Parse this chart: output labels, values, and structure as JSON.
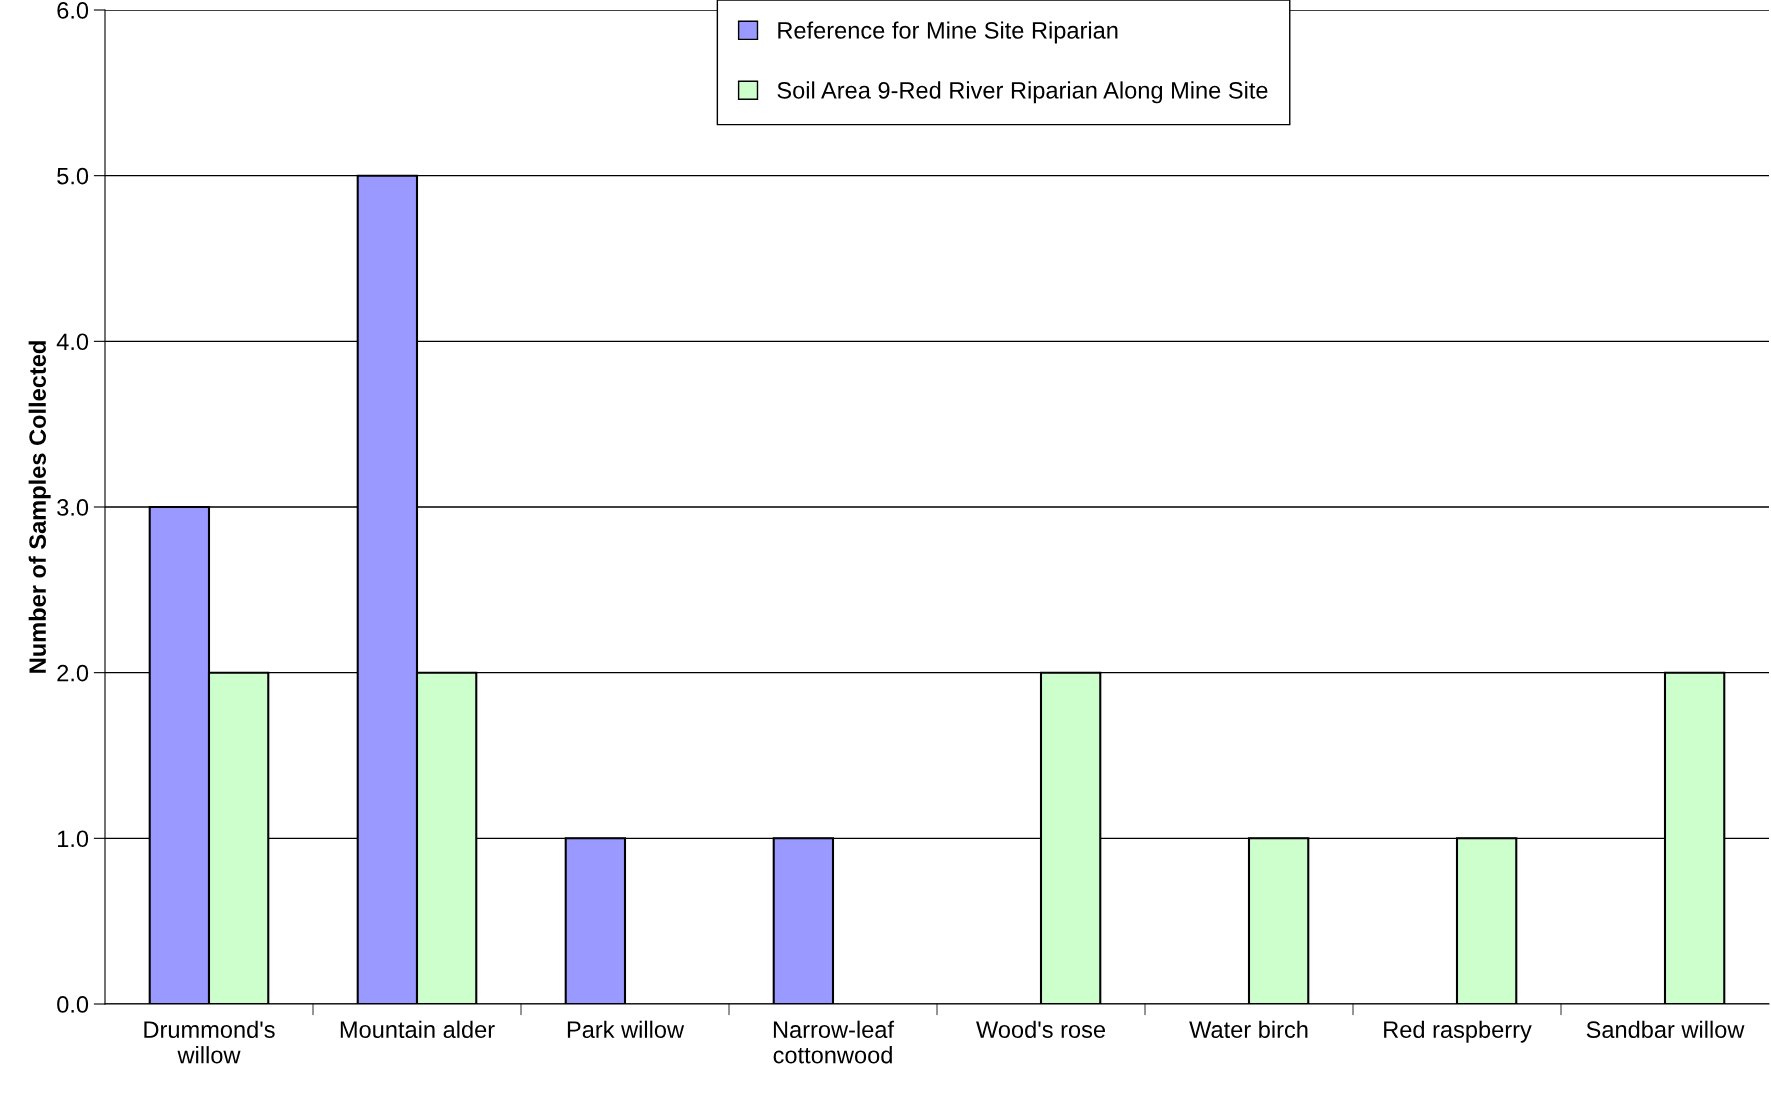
{
  "chart_data": {
    "type": "bar",
    "ylabel": "Number of Samples Collected",
    "categories": [
      "Drummond's\nwillow",
      "Mountain alder",
      "Park willow",
      "Narrow-leaf\ncottonwood",
      "Wood's rose",
      "Water birch",
      "Red raspberry",
      "Sandbar willow"
    ],
    "series": [
      {
        "name": "Reference for Mine Site Riparian",
        "color": "#9999ff",
        "values": [
          3,
          5,
          1,
          1,
          null,
          null,
          null,
          null
        ]
      },
      {
        "name": "Soil Area 9-Red River Riparian Along Mine Site",
        "color": "#ccffcc",
        "values": [
          2,
          2,
          null,
          null,
          2,
          1,
          1,
          2
        ]
      }
    ],
    "ylim": [
      0,
      6
    ],
    "yticks": [
      {
        "value": 0,
        "label": "0.0"
      },
      {
        "value": 1,
        "label": "1.0"
      },
      {
        "value": 2,
        "label": "2.0"
      },
      {
        "value": 3,
        "label": "3.0"
      },
      {
        "value": 4,
        "label": "4.0"
      },
      {
        "value": 5,
        "label": "5.0"
      },
      {
        "value": 6,
        "label": "6.0"
      }
    ],
    "grid": "y",
    "legend": "top"
  }
}
